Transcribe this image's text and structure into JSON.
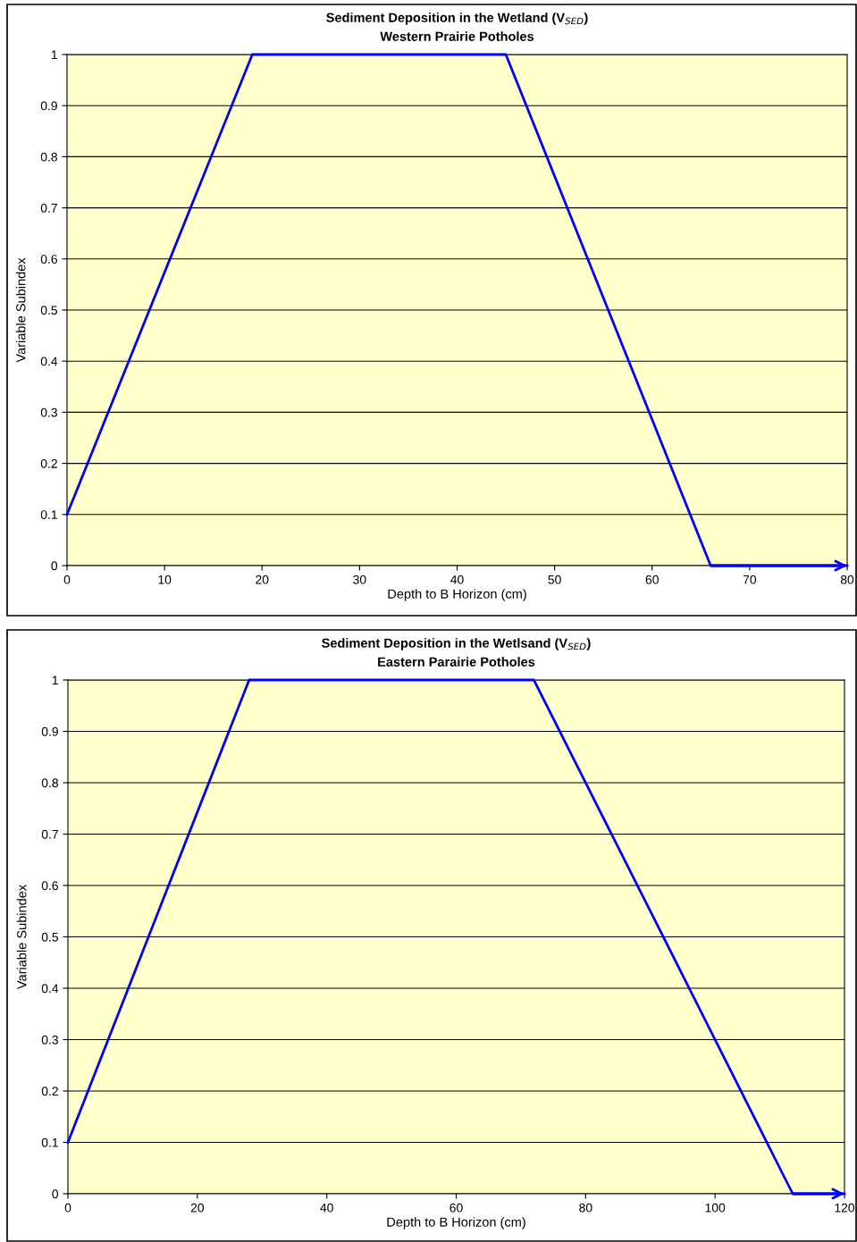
{
  "chart_data": [
    {
      "type": "line",
      "title": "Sediment Deposition in the Wetland (V$_{SED}$)",
      "subtitle": "Western Prairie Potholes",
      "xlabel": "Depth to B Horizon (cm)",
      "ylabel": "Variable Subindex",
      "series": [
        {
          "color": "#0000ff",
          "x": [
            0,
            19,
            45,
            66,
            80
          ],
          "values": [
            0.1,
            1,
            1,
            0,
            0
          ]
        }
      ],
      "xlim": [
        0,
        80
      ],
      "xticks": [
        0,
        10,
        20,
        30,
        40,
        50,
        60,
        70,
        80
      ],
      "ylim": [
        0,
        1
      ],
      "yticks": [
        0,
        0.1,
        0.2,
        0.3,
        0.4,
        0.5,
        0.6,
        0.7,
        0.8,
        0.9,
        1
      ],
      "grid": "y",
      "marker": "none",
      "line_style": "solid"
    },
    {
      "type": "line",
      "title": "Sediment Deposition in the Wetlsand (V$_{SED}$)",
      "subtitle": "Eastern Parairie Potholes",
      "xlabel": "Depth to B Horizon (cm)",
      "ylabel": "Variable Subindex",
      "series": [
        {
          "color": "#0000ff",
          "x": [
            0,
            28,
            72,
            112,
            120
          ],
          "values": [
            0.1,
            1,
            1,
            0,
            0
          ]
        }
      ],
      "xlim": [
        0,
        120
      ],
      "xticks": [
        0,
        20,
        40,
        60,
        80,
        100,
        120
      ],
      "ylim": [
        0,
        1
      ],
      "yticks": [
        0,
        0.1,
        0.2,
        0.3,
        0.4,
        0.5,
        0.6,
        0.7,
        0.8,
        0.9,
        1
      ],
      "grid": "y",
      "marker": "none",
      "line_style": "solid"
    }
  ]
}
